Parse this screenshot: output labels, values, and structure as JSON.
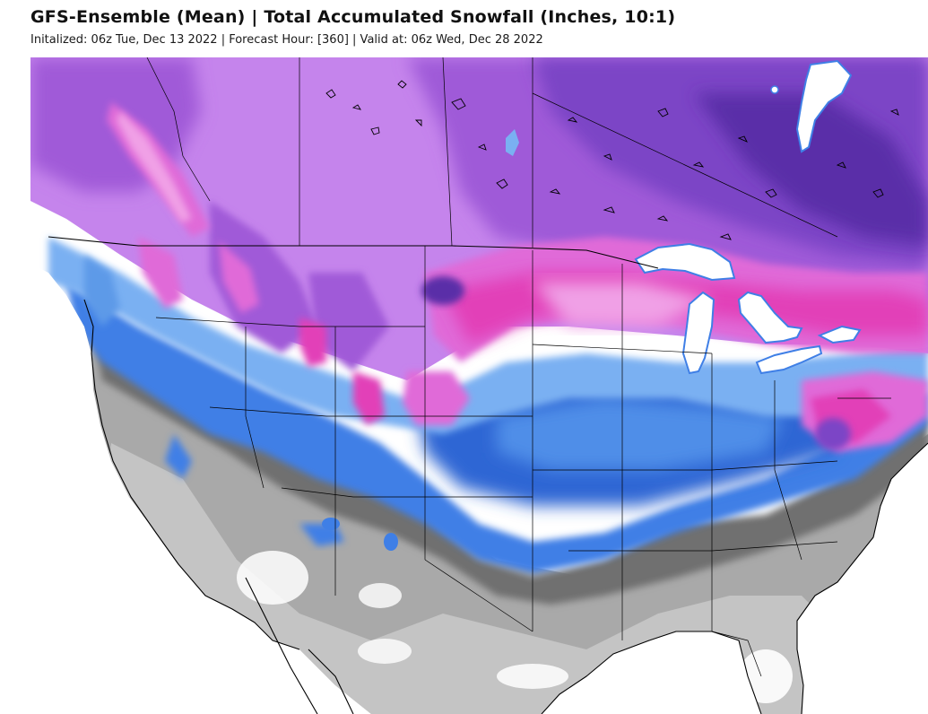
{
  "header": {
    "title": "GFS-Ensemble (Mean) | Total Accumulated Snowfall (Inches, 10:1)",
    "subtitle": "Initalized: 06z Tue, Dec 13 2022 | Forecast Hour: [360] | Valid at: 06z Wed, Dec 28 2022"
  },
  "map": {
    "region": "United States",
    "product": "snowfall",
    "snow_colors": {
      "trace": "#d0d0d0",
      "light_gray": "#a9a9a9",
      "dark_gray": "#707070",
      "blue_dark": "#1f56c8",
      "blue_mid": "#3f7fe6",
      "blue_light": "#7ab0f2",
      "cyan": "#8fe0f5",
      "violet_light": "#c584ec",
      "violet": "#a05ad8",
      "purple": "#7c44c6",
      "purple_dark": "#5a2fa8",
      "magenta": "#e06ad8",
      "pink": "#f0a0e6",
      "hot_pink": "#e23fb8",
      "white_high": "#ffffff",
      "water": "#ffffff"
    }
  }
}
